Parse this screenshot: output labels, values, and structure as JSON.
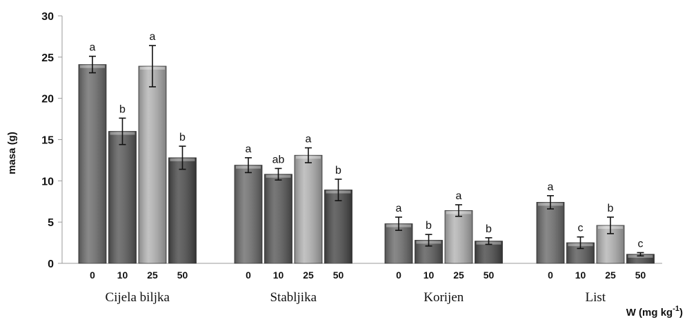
{
  "chart_data": {
    "type": "bar",
    "ylabel": "masa (g)",
    "xlabel": "W (mg kg-1)",
    "xlabel_main": "W (mg kg",
    "xlabel_sup": "-1",
    "xlabel_close": ")",
    "ylim": [
      0,
      30
    ],
    "yticks": [
      0,
      5,
      10,
      15,
      20,
      25,
      30
    ],
    "grid": false,
    "groups": [
      {
        "name": "Cijela biljka",
        "bars": [
          {
            "dose": "0",
            "value": 24.1,
            "err": 1.0,
            "letter": "a",
            "color": "#6e6e6e"
          },
          {
            "dose": "10",
            "value": 16.0,
            "err": 1.6,
            "letter": "b",
            "color": "#5a5a5a"
          },
          {
            "dose": "25",
            "value": 23.9,
            "err": 2.5,
            "letter": "a",
            "color": "#b5b5b5"
          },
          {
            "dose": "50",
            "value": 12.8,
            "err": 1.4,
            "letter": "b",
            "color": "#4a4a4a"
          }
        ]
      },
      {
        "name": "Stabljika",
        "bars": [
          {
            "dose": "0",
            "value": 11.9,
            "err": 0.9,
            "letter": "a",
            "color": "#6e6e6e"
          },
          {
            "dose": "10",
            "value": 10.8,
            "err": 0.7,
            "letter": "ab",
            "color": "#5a5a5a"
          },
          {
            "dose": "25",
            "value": 13.1,
            "err": 0.9,
            "letter": "a",
            "color": "#b5b5b5"
          },
          {
            "dose": "50",
            "value": 8.9,
            "err": 1.3,
            "letter": "b",
            "color": "#4a4a4a"
          }
        ]
      },
      {
        "name": "Korijen",
        "bars": [
          {
            "dose": "0",
            "value": 4.8,
            "err": 0.8,
            "letter": "a",
            "color": "#6e6e6e"
          },
          {
            "dose": "10",
            "value": 2.8,
            "err": 0.7,
            "letter": "b",
            "color": "#5a5a5a"
          },
          {
            "dose": "25",
            "value": 6.4,
            "err": 0.7,
            "letter": "a",
            "color": "#b5b5b5"
          },
          {
            "dose": "50",
            "value": 2.7,
            "err": 0.4,
            "letter": "b",
            "color": "#4a4a4a"
          }
        ]
      },
      {
        "name": "List",
        "bars": [
          {
            "dose": "0",
            "value": 7.4,
            "err": 0.8,
            "letter": "a",
            "color": "#6e6e6e"
          },
          {
            "dose": "10",
            "value": 2.5,
            "err": 0.7,
            "letter": "c",
            "color": "#5a5a5a"
          },
          {
            "dose": "25",
            "value": 4.6,
            "err": 1.0,
            "letter": "b",
            "color": "#b5b5b5"
          },
          {
            "dose": "50",
            "value": 1.1,
            "err": 0.2,
            "letter": "c",
            "color": "#4a4a4a"
          }
        ]
      }
    ]
  }
}
